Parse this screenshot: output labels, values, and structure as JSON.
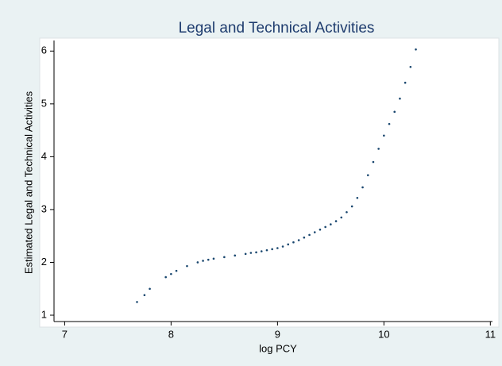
{
  "chart_data": {
    "type": "scatter",
    "title": "Legal and Technical Activities",
    "x_label": "log PCY",
    "y_label": "Estimated Legal and Technical Activities",
    "color": "#1a476f",
    "x": [
      7.68,
      7.75,
      7.8,
      7.95,
      8.0,
      8.05,
      8.15,
      8.25,
      8.3,
      8.35,
      8.4,
      8.5,
      8.6,
      8.7,
      8.75,
      8.8,
      8.85,
      8.9,
      8.95,
      9.0,
      9.05,
      9.1,
      9.15,
      9.2,
      9.25,
      9.3,
      9.35,
      9.4,
      9.45,
      9.5,
      9.55,
      9.6,
      9.65,
      9.7,
      9.75,
      9.8,
      9.85,
      9.9,
      9.95,
      10.0,
      10.05,
      10.1,
      10.15,
      10.2,
      10.25,
      10.3
    ],
    "values": [
      1.25,
      1.38,
      1.5,
      1.72,
      1.78,
      1.84,
      1.93,
      2.0,
      2.03,
      2.05,
      2.07,
      2.1,
      2.13,
      2.16,
      2.18,
      2.19,
      2.21,
      2.23,
      2.25,
      2.27,
      2.3,
      2.34,
      2.38,
      2.42,
      2.47,
      2.52,
      2.57,
      2.62,
      2.67,
      2.72,
      2.78,
      2.85,
      2.95,
      3.06,
      3.22,
      3.42,
      3.65,
      3.9,
      4.15,
      4.4,
      4.62,
      4.85,
      5.1,
      5.4,
      5.7,
      6.03
    ],
    "xlim": [
      6.9,
      11.02
    ],
    "ylim": [
      0.88,
      6.2
    ],
    "xticks": [
      7,
      8,
      9,
      10,
      11
    ],
    "yticks": [
      1,
      2,
      3,
      4,
      5,
      6
    ]
  }
}
